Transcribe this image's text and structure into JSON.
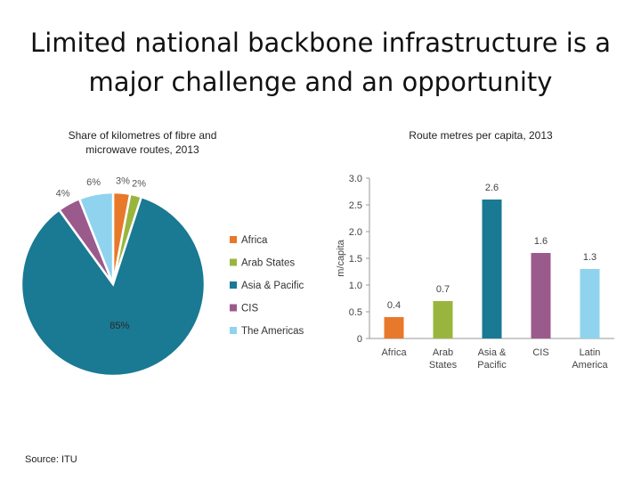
{
  "slide": {
    "title_line1": "Limited national backbone infrastructure is a",
    "title_line2": "major challenge and an opportunity",
    "source": "Source: ITU"
  },
  "chart_data": [
    {
      "type": "pie",
      "title": "Share of kilometres of fibre and microwave routes, 2013",
      "title_line1": "Share of kilometres of fibre and",
      "title_line2": "microwave routes, 2013",
      "categories": [
        "Africa",
        "Arab States",
        "Asia & Pacific",
        "CIS",
        "The Americas"
      ],
      "values": [
        3,
        2,
        85,
        4,
        6
      ],
      "value_labels": [
        "3%",
        "2%",
        "85%",
        "4%",
        "6%"
      ],
      "colors": [
        "#e8782a",
        "#9ab53e",
        "#1a7993",
        "#9b5a8c",
        "#8fd3ef"
      ],
      "legend": "right"
    },
    {
      "type": "bar",
      "title": "Route metres per capita, 2013",
      "categories": [
        "Africa",
        "Arab States",
        "Asia & Pacific",
        "CIS",
        "Latin America"
      ],
      "category_lines": [
        [
          "Africa"
        ],
        [
          "Arab",
          "States"
        ],
        [
          "Asia &",
          "Pacific"
        ],
        [
          "CIS"
        ],
        [
          "Latin",
          "America"
        ]
      ],
      "values": [
        0.4,
        0.7,
        2.6,
        1.6,
        1.3
      ],
      "value_labels": [
        "0.4",
        "0.7",
        "2.6",
        "1.6",
        "1.3"
      ],
      "colors": [
        "#e8782a",
        "#9ab53e",
        "#1a7993",
        "#9b5a8c",
        "#8fd3ef"
      ],
      "ylabel": "m/capita",
      "ylim": [
        0,
        3.0
      ],
      "yticks": [
        "0",
        "0.5",
        "1.0",
        "1.5",
        "2.0",
        "2.5",
        "3.0"
      ],
      "grid": false
    }
  ]
}
